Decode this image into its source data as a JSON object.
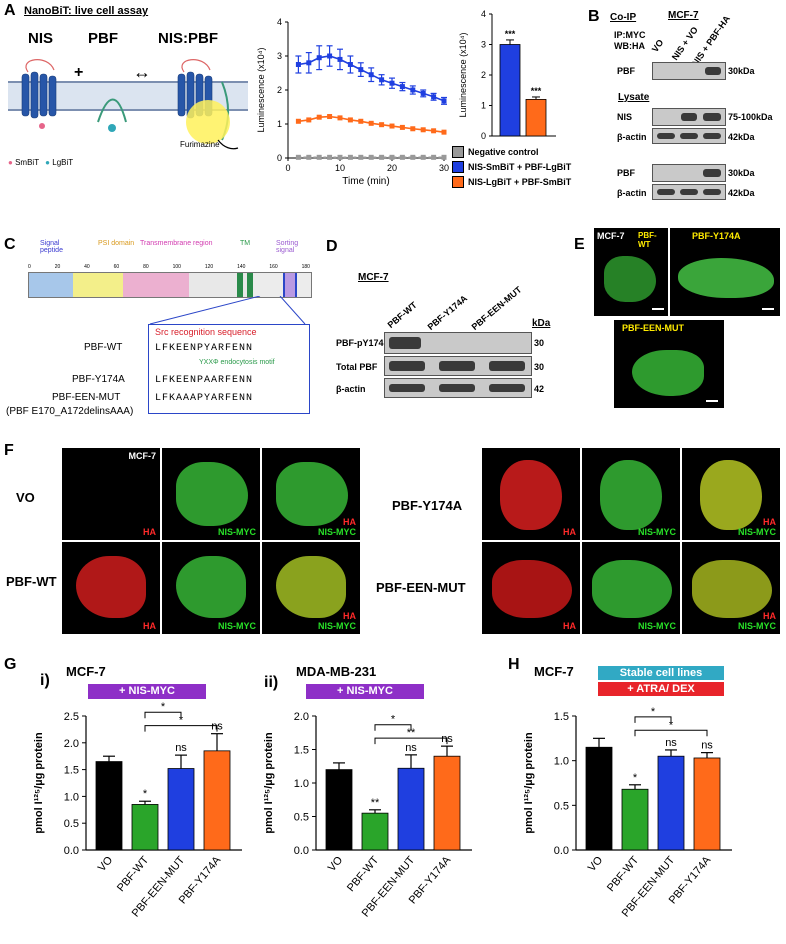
{
  "panel_letters": {
    "A": "A",
    "B": "B",
    "C": "C",
    "D": "D",
    "E": "E",
    "F": "F",
    "G": "G",
    "H": "H"
  },
  "colors": {
    "blue": "#1f3fe0",
    "orange": "#ff6a1a",
    "green": "#2aa52a",
    "grey": "#999999",
    "black": "#000000",
    "purple": "#8e2fc7",
    "teal": "#31a9c4",
    "red": "#e8242a"
  },
  "panel_a": {
    "title": "NanoBiT: live cell assay",
    "nis": "NIS",
    "pbf": "PBF",
    "complex": "NIS:PBF",
    "plus": "+",
    "arrow": "↔",
    "smbit": "SmBiT",
    "lgbit": "LgBiT",
    "substrate": "Furimazine"
  },
  "panel_b": {
    "title": "Co-IP",
    "ip_line": "IP:MYC",
    "wb_line": "WB:HA",
    "cell_line": "MCF-7",
    "lanes": [
      "VO",
      "NIS + VO",
      "NIS + PBF-HA"
    ],
    "lysate": "Lysate",
    "rows": [
      {
        "left": "PBF",
        "right": "30kDa"
      },
      {
        "left": "NIS",
        "right": "75-100kDa"
      },
      {
        "left": "β-actin",
        "right": "42kDa"
      },
      {
        "left": "PBF",
        "right": "30kDa"
      },
      {
        "left": "β-actin",
        "right": "42kDa"
      }
    ]
  },
  "panel_c": {
    "domains": [
      "Signal peptide",
      "PSI domain",
      "Transmembrane region",
      "TM",
      "Sorting signal"
    ],
    "tick_labels": [
      "0",
      "20",
      "40",
      "60",
      "80",
      "100",
      "120",
      "140",
      "160",
      "180"
    ],
    "src_seq": "Src recognition sequence",
    "motif": "YXXΦ endocytosis motif",
    "rows": [
      {
        "name": "PBF-WT",
        "seq": "LFKEENPYARFENN"
      },
      {
        "name": "PBF-Y174A",
        "seq": "LFKEENPAARFENN"
      },
      {
        "name": "PBF-EEN-MUT",
        "seq": "LFKAAAPYARFENN"
      }
    ],
    "mut_note": "(PBF E170_A172delinsAAA)"
  },
  "panel_d": {
    "cell_line": "MCF-7",
    "lanes": [
      "PBF-WT",
      "PBF-Y174A",
      "PBF-EEN-MUT"
    ],
    "kda": "kDa",
    "rows": [
      {
        "left": "PBF-pY174",
        "right": "30"
      },
      {
        "left": "Total PBF",
        "right": "30"
      },
      {
        "left": "β-actin",
        "right": "42"
      }
    ]
  },
  "panel_e": {
    "images": [
      "MCF-7",
      "PBF-WT",
      "PBF-Y174A",
      "PBF-EEN-MUT"
    ]
  },
  "panel_f": {
    "cell_line": "MCF-7",
    "rows": [
      "VO",
      "PBF-WT",
      "PBF-Y174A",
      "PBF-EEN-MUT"
    ],
    "ch_ha": "HA",
    "ch_nis": "NIS-MYC"
  },
  "chart_data": [
    {
      "id": "A-line",
      "type": "line",
      "xlabel": "Time (min)",
      "ylabel": "Luminescence (x10⁴)",
      "xlim": [
        0,
        30
      ],
      "ylim": [
        0,
        4
      ],
      "xticks": [
        0,
        10,
        20,
        30
      ],
      "yticks": [
        0,
        1,
        2,
        3,
        4
      ],
      "x": [
        2,
        4,
        6,
        8,
        10,
        12,
        14,
        16,
        18,
        20,
        22,
        24,
        26,
        28,
        30
      ],
      "series": [
        {
          "name": "Negative control",
          "color": "#999999",
          "values": [
            0.02,
            0.02,
            0.02,
            0.02,
            0.02,
            0.02,
            0.02,
            0.02,
            0.02,
            0.02,
            0.02,
            0.02,
            0.02,
            0.02,
            0.02
          ]
        },
        {
          "name": "NIS-SmBiT + PBF-LgBiT",
          "color": "#1f3fe0",
          "values": [
            2.75,
            2.8,
            2.95,
            3.0,
            2.9,
            2.75,
            2.6,
            2.45,
            2.3,
            2.2,
            2.1,
            2.0,
            1.9,
            1.8,
            1.68
          ],
          "error": [
            0.25,
            0.3,
            0.35,
            0.3,
            0.3,
            0.25,
            0.2,
            0.2,
            0.15,
            0.15,
            0.12,
            0.12,
            0.1,
            0.1,
            0.1
          ]
        },
        {
          "name": "NIS-LgBiT + PBF-SmBiT",
          "color": "#ff6a1a",
          "values": [
            1.08,
            1.12,
            1.2,
            1.22,
            1.18,
            1.12,
            1.08,
            1.02,
            0.98,
            0.94,
            0.9,
            0.86,
            0.83,
            0.8,
            0.76
          ]
        }
      ]
    },
    {
      "id": "A-bar",
      "type": "bar",
      "ylabel": "Luminescence (x10⁴)",
      "ylim": [
        0,
        4
      ],
      "yticks": [
        0,
        1,
        2,
        3,
        4
      ],
      "categories": [
        "NIS-SmBiT + PBF-LgBiT",
        "NIS-LgBiT + PBF-SmBiT"
      ],
      "values": [
        3.0,
        1.2
      ],
      "errors": [
        0.15,
        0.08
      ],
      "colors": [
        "#1f3fe0",
        "#ff6a1a"
      ],
      "annotations": [
        "***",
        "***"
      ]
    },
    {
      "id": "G-i",
      "type": "bar",
      "title": "MCF-7",
      "tag": "+ NIS-MYC",
      "ylabel": "pmol I¹²⁵/µg protein",
      "ylim": [
        0,
        2.5
      ],
      "yticks": [
        0.0,
        0.5,
        1.0,
        1.5,
        2.0,
        2.5
      ],
      "categories": [
        "VO",
        "PBF-WT",
        "PBF-EEN-MUT",
        "PBF-Y174A"
      ],
      "values": [
        1.65,
        0.85,
        1.52,
        1.85
      ],
      "errors": [
        0.1,
        0.06,
        0.25,
        0.32
      ],
      "colors": [
        "#000000",
        "#2aa52a",
        "#1f3fe0",
        "#ff6a1a"
      ],
      "annotations": [
        "",
        "*",
        "ns",
        "ns"
      ],
      "brackets": [
        {
          "from": 1,
          "to": 2,
          "label": "*"
        },
        {
          "from": 1,
          "to": 3,
          "label": "*"
        }
      ]
    },
    {
      "id": "G-ii",
      "type": "bar",
      "title": "MDA-MB-231",
      "tag": "+ NIS-MYC",
      "ylabel": "pmol I¹²⁵/µg protein",
      "ylim": [
        0,
        2.0
      ],
      "yticks": [
        0.0,
        0.5,
        1.0,
        1.5,
        2.0
      ],
      "categories": [
        "VO",
        "PBF-WT",
        "PBF-EEN-MUT",
        "PBF-Y174A"
      ],
      "values": [
        1.2,
        0.55,
        1.22,
        1.4
      ],
      "errors": [
        0.1,
        0.05,
        0.2,
        0.15
      ],
      "colors": [
        "#000000",
        "#2aa52a",
        "#1f3fe0",
        "#ff6a1a"
      ],
      "annotations": [
        "",
        "**",
        "ns",
        "ns"
      ],
      "brackets": [
        {
          "from": 1,
          "to": 2,
          "label": "*"
        },
        {
          "from": 1,
          "to": 3,
          "label": "**"
        }
      ]
    },
    {
      "id": "H",
      "type": "bar",
      "title": "MCF-7",
      "tags": [
        "Stable cell lines",
        "+ ATRA/ DEX"
      ],
      "ylabel": "pmol I¹²⁵/µg protein",
      "ylim": [
        0,
        1.5
      ],
      "yticks": [
        0.0,
        0.5,
        1.0,
        1.5
      ],
      "categories": [
        "VO",
        "PBF-WT",
        "PBF-EEN-MUT",
        "PBF-Y174A"
      ],
      "values": [
        1.15,
        0.68,
        1.05,
        1.03
      ],
      "errors": [
        0.1,
        0.05,
        0.07,
        0.06
      ],
      "colors": [
        "#000000",
        "#2aa52a",
        "#1f3fe0",
        "#ff6a1a"
      ],
      "annotations": [
        "",
        "*",
        "ns",
        "ns"
      ],
      "brackets": [
        {
          "from": 1,
          "to": 2,
          "label": "*"
        },
        {
          "from": 1,
          "to": 3,
          "label": "*"
        }
      ]
    }
  ],
  "sublabels": {
    "i": "i)",
    "ii": "ii)"
  }
}
